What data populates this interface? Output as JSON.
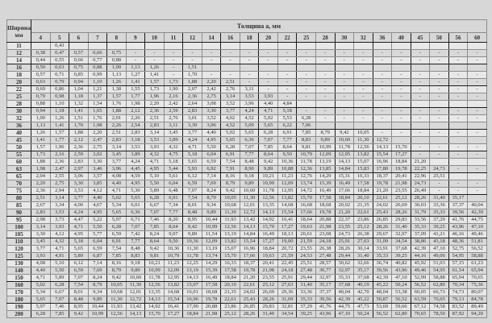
{
  "header": {
    "width_label": "Ширина b,",
    "width_unit": "мм",
    "thickness_label": "Толщина a, мм"
  },
  "columns": [
    "4",
    "5",
    "6",
    "7",
    "8",
    "9",
    "10",
    "11",
    "12",
    "14",
    "16",
    "18",
    "20",
    "22",
    "25",
    "28",
    "30",
    "32",
    "36",
    "40",
    "45",
    "50",
    "56",
    "60"
  ],
  "rows": [
    {
      "w": "11",
      "v": [
        "",
        "0,43",
        "",
        "",
        "",
        "",
        "",
        "",
        "",
        "",
        "",
        "",
        "",
        "",
        "",
        "",
        "",
        "",
        "",
        "",
        "",
        "",
        "",
        ""
      ]
    },
    {
      "w": "12",
      "v": [
        "0,38",
        "0,47",
        "0,57",
        "0,66",
        "0,75",
        "-",
        "-",
        "-",
        "-",
        "-",
        "-",
        "-",
        "-",
        "-",
        "-",
        "-",
        "-",
        "-",
        "-",
        "-",
        "-",
        "-",
        "-",
        "-"
      ]
    },
    {
      "w": "14",
      "v": [
        "0,44",
        "0,55",
        "0,66",
        "0,77",
        "0,88",
        "-",
        "-",
        "-",
        "-",
        "-",
        "-",
        "-",
        "-",
        "-",
        "-",
        "-",
        "-",
        "-",
        "-",
        "-",
        "-",
        "-",
        "-",
        "-"
      ]
    },
    {
      "w": "16",
      "v": [
        "0,50",
        "0,63",
        "0,75",
        "0,88",
        "1,00",
        "1,13",
        "1,26",
        "-",
        "1,51",
        "",
        "",
        "",
        "",
        "",
        "",
        "",
        "",
        "",
        "",
        "",
        "",
        "",
        "",
        ""
      ]
    },
    {
      "w": "18",
      "v": [
        "0,57",
        "0,71",
        "0,85",
        "0,99",
        "1,13",
        "1,27",
        "1,41",
        "-",
        "1,70",
        "-",
        "-",
        "-",
        "-",
        "-",
        "-",
        "-",
        "-",
        "-",
        "-",
        "-",
        "-",
        "-",
        "-",
        "-"
      ]
    },
    {
      "w": "20",
      "v": [
        "0,63",
        "0,79",
        "0,94",
        "1,10",
        "1,26",
        "1,41",
        "1,57",
        "1,73",
        "1,88",
        "2,20",
        "2,51",
        "-",
        "-",
        "-",
        "-",
        "-",
        "-",
        "-",
        "-",
        "-",
        "-",
        "-",
        "-",
        "-"
      ]
    },
    {
      "w": "22",
      "v": [
        "0,69",
        "0,86",
        "1,04",
        "1,21",
        "1,38",
        "1,55",
        "1,73",
        "1,90",
        "2,07",
        "2,42",
        "2,76",
        "3,11",
        "-",
        "-",
        "-",
        "-",
        "-",
        "-",
        "-",
        "-",
        "-",
        "-",
        "-",
        "-"
      ]
    },
    {
      "w": "25",
      "v": [
        "0,79",
        "0,98",
        "1,18",
        "1,37",
        "1,57",
        "1,77",
        "1,96",
        "2,16",
        "2,36",
        "2,75",
        "3,14",
        "3,53",
        "3,93",
        "-",
        "-",
        "-",
        "-",
        "-",
        "-",
        "-",
        "-",
        "-",
        "-",
        "-"
      ]
    },
    {
      "w": "28",
      "v": [
        "0,88",
        "1,10",
        "1,32",
        "1,54",
        "1,76",
        "1,98",
        "2,20",
        "2,42",
        "2,64",
        "3,08",
        "3,52",
        "3,96",
        "4,40",
        "4,84",
        "",
        "",
        "",
        "",
        "",
        "",
        "",
        "",
        "",
        ""
      ]
    },
    {
      "w": "30",
      "v": [
        "0,94",
        "1,18",
        "1,41",
        "1,65",
        "1,88",
        "2,12",
        "2,36",
        "2,59",
        "2,83",
        "3,30",
        "3,77",
        "4,24",
        "4,71",
        "5,18",
        "-",
        "-",
        "-",
        "-",
        "-",
        "-",
        "-",
        "-",
        "-",
        "-"
      ]
    },
    {
      "w": "32",
      "v": [
        "1,00",
        "1,26",
        "1,51",
        "1,76",
        "2,01",
        "2,26",
        "2,51",
        "2,76",
        "3,01",
        "3,52",
        "4,02",
        "4,52",
        "5,02",
        "5,53",
        "6,28",
        "-",
        "-",
        "-",
        "-",
        "-",
        "-",
        "-",
        "-",
        "-"
      ]
    },
    {
      "w": "36",
      "v": [
        "1,13",
        "1,41",
        "1,70",
        "1,98",
        "2,26",
        "2,54",
        "2,83",
        "3,11",
        "3,39",
        "3,96",
        "4,52",
        "5,09",
        "5,65",
        "6,22",
        "7,06",
        "",
        "",
        "",
        "",
        "",
        "",
        "",
        "",
        ""
      ]
    },
    {
      "w": "40",
      "v": [
        "1,26",
        "1,57",
        "1,88",
        "2,20",
        "2,51",
        "2,83",
        "3,14",
        "3,45",
        "3,77",
        "4,40",
        "5,02",
        "5,65",
        "6,28",
        "6,91",
        "7,85",
        "8,79",
        "9,42",
        "10,05",
        "-",
        "-",
        "-",
        "-",
        "-",
        "-"
      ]
    },
    {
      "w": "45",
      "v": [
        "1,41",
        "1,77",
        "2,12",
        "2,47",
        "2,83",
        "3,18",
        "3,53",
        "3,89",
        "4,24",
        "4,95",
        "5,65",
        "6,36",
        "7,07",
        "7,77",
        "8,83",
        "9,89",
        "10,60",
        "11,30",
        "12,72",
        "",
        "",
        "",
        "",
        ""
      ]
    },
    {
      "w": "50",
      "v": [
        "1,57",
        "1,96",
        "2,36",
        "2,75",
        "3,14",
        "3,53",
        "3,93",
        "4,32",
        "4,71",
        "5,50",
        "6,28",
        "7,07",
        "7,85",
        "8,64",
        "9,81",
        "10,99",
        "11,78",
        "12,56",
        "14,13",
        "15,70",
        "-",
        "-",
        "-",
        "-"
      ]
    },
    {
      "w": "55",
      "v": [
        "1,73",
        "2,16",
        "2,59",
        "3,02",
        "3,45",
        "3,89",
        "4,32",
        "4,75",
        "5,18",
        "6,04",
        "6,91",
        "7,77",
        "8,64",
        "9,50",
        "10,79",
        "12,09",
        "12,95",
        "13,82",
        "15,54",
        "17,27",
        "-",
        "-",
        "-",
        "-"
      ]
    },
    {
      "w": "60",
      "v": [
        "1,88",
        "2,36",
        "2,83",
        "3,30",
        "3,77",
        "4,24",
        "4,71",
        "5,18",
        "5,65",
        "6,59",
        "7,54",
        "8,48",
        "9,42",
        "10,36",
        "11,78",
        "13,19",
        "14,13",
        "15,07",
        "16,96",
        "18,84",
        "21,20",
        "",
        "",
        ""
      ]
    },
    {
      "w": "63",
      "v": [
        "1,98",
        "2,47",
        "2,97",
        "3,46",
        "3,96",
        "4,45",
        "4,95",
        "5,44",
        "5,93",
        "6,92",
        "7,91",
        "8,90",
        "9,89",
        "10,88",
        "12,36",
        "13,85",
        "14,84",
        "15,83",
        "17,80",
        "19,78",
        "22,25",
        "24,73",
        "-",
        "-"
      ]
    },
    {
      "w": "65",
      "v": [
        "2,04",
        "2,55",
        "3,06",
        "3,57",
        "4,08",
        "4,59",
        "5,10",
        "5,61",
        "6,12",
        "7,14",
        "8,16",
        "9,18",
        "10,21",
        "11,23",
        "12,76",
        "14,29",
        "15,31",
        "16,33",
        "18,37",
        "20,41",
        "22,96",
        "25,51",
        "",
        ""
      ]
    },
    {
      "w": "70",
      "v": [
        "2,20",
        "2,75",
        "3,30",
        "3,85",
        "4,40",
        "4,95",
        "5,50",
        "6,04",
        "6,59",
        "7,69",
        "8,79",
        "9,89",
        "10,99",
        "12,09",
        "13,74",
        "15,39",
        "16,49",
        "17,58",
        "19,78",
        "21,98",
        "24,73",
        "-",
        "-",
        "-"
      ]
    },
    {
      "w": "75",
      "v": [
        "2,36",
        "2,94",
        "3,53",
        "4,12",
        "4,71",
        "5,30",
        "5,89",
        "6,48",
        "7,07",
        "8,24",
        "9,42",
        "10,60",
        "11,78",
        "12,95",
        "14,72",
        "16,49",
        "17,66",
        "18,84",
        "21,20",
        "23,55",
        "26,49",
        "-",
        "-",
        "-"
      ]
    },
    {
      "w": "80",
      "v": [
        "2,51",
        "3,14",
        "3,77",
        "4,40",
        "5,02",
        "5,65",
        "6,28",
        "6,91",
        "7,54",
        "8,79",
        "10,05",
        "11,30",
        "12,56",
        "13,82",
        "15,70",
        "17,58",
        "18,84",
        "20,10",
        "22,61",
        "25,12",
        "28,26",
        "31,40",
        "35,17",
        ""
      ]
    },
    {
      "w": "85",
      "v": [
        "2,67",
        "3,34",
        "4,00",
        "4,67",
        "5,34",
        "6,01",
        "6,67",
        "7,34",
        "8,01",
        "9,34",
        "10,68",
        "12,01",
        "13,35",
        "14,68",
        "16,68",
        "18,68",
        "20,02",
        "21,35",
        "24,02",
        "26,69",
        "30,03",
        "33,36",
        "37,37",
        "40,04"
      ]
    },
    {
      "w": "90",
      "v": [
        "2,83",
        "3,53",
        "4,24",
        "4,95",
        "5,65",
        "6,36",
        "7,07",
        "7,77",
        "8,48",
        "9,89",
        "11,30",
        "12,72",
        "14,13",
        "15,54",
        "17,66",
        "19,78",
        "21,20",
        "22,61",
        "25,43",
        "28,26",
        "31,79",
        "35,33",
        "39,56",
        "42,39"
      ]
    },
    {
      "w": "95",
      "v": [
        "2,98",
        "3,73",
        "4,47",
        "5,22",
        "5,97",
        "6,71",
        "7,46",
        "8,20",
        "8,95",
        "10,44",
        "11,93",
        "13,42",
        "14,92",
        "16,41",
        "18,64",
        "20,88",
        "22,37",
        "23,86",
        "26,85",
        "29,83",
        "33,56",
        "37,29",
        "41,76",
        "44,75"
      ]
    },
    {
      "w": "100",
      "v": [
        "3,14",
        "3,93",
        "4,71",
        "5,50",
        "6,28",
        "7,07",
        "7,85",
        "8,64",
        "9,42",
        "10,99",
        "12,56",
        "14,13",
        "15,70",
        "17,27",
        "19,63",
        "21,98",
        "23,55",
        "25,12",
        "28,26",
        "31,40",
        "35,33",
        "39,25",
        "43,96",
        "47,10"
      ]
    },
    {
      "w": "105",
      "v": [
        "3,30",
        "4,12",
        "4,95",
        "5,77",
        "6,59",
        "7,42",
        "8,24",
        "9,07",
        "9,89",
        "11,54",
        "13,19",
        "14,84",
        "16,49",
        "18,13",
        "20,61",
        "23,08",
        "24,73",
        "26,38",
        "29,67",
        "32,97",
        "37,09",
        "41,21",
        "46,16",
        "49,46"
      ]
    },
    {
      "w": "110",
      "v": [
        "3,45",
        "4,32",
        "5,18",
        "6,04",
        "6,91",
        "7,77",
        "8,64",
        "9,50",
        "10,36",
        "12,09",
        "13,82",
        "15,54",
        "17,27",
        "19,00",
        "21,59",
        "24,18",
        "25,91",
        "27,63",
        "31,09",
        "34,54",
        "38,86",
        "43,18",
        "48,36",
        "51,81"
      ]
    },
    {
      "w": "120",
      "v": [
        "3,77",
        "4,71",
        "5,65",
        "6,59",
        "7,54",
        "8,48",
        "9,42",
        "10,36",
        "11,30",
        "13,19",
        "15,07",
        "16,96",
        "18,84",
        "20,72",
        "23,55",
        "26,38",
        "28,26",
        "30,14",
        "33,91",
        "37,68",
        "42,39",
        "47,10",
        "52,75",
        "56,52"
      ]
    },
    {
      "w": "125",
      "v": [
        "3,93",
        "4,91",
        "5,89",
        "6,87",
        "7,85",
        "8,83",
        "9,81",
        "10,79",
        "11,78",
        "13,74",
        "15,70",
        "17,66",
        "19,63",
        "21,59",
        "24,53",
        "27,48",
        "29,44",
        "31,40",
        "35,33",
        "39,25",
        "44,16",
        "49,06",
        "54,95",
        "58,88"
      ]
    },
    {
      "w": "130",
      "v": [
        "4,08",
        "5,10",
        "6,12",
        "7,14",
        "8,16",
        "9,18",
        "10,21",
        "11,23",
        "12,25",
        "14,29",
        "16,33",
        "18,37",
        "20,41",
        "22,45",
        "25,51",
        "28,57",
        "30,62",
        "32,66",
        "36,74",
        "40,82",
        "45,92",
        "51,03",
        "57,15",
        "61,23"
      ]
    },
    {
      "w": "140",
      "v": [
        "4,40",
        "5,50",
        "6,59",
        "7,69",
        "8,79",
        "9,89",
        "10,99",
        "12,09",
        "13,19",
        "15,39",
        "17,58",
        "19,78",
        "21,98",
        "24,18",
        "27,48",
        "30,77",
        "32,97",
        "35,17",
        "39,56",
        "43,96",
        "49,46",
        "54,95",
        "61,54",
        "65,94"
      ]
    },
    {
      "w": "150",
      "v": [
        "4,71",
        "5,89",
        "7,07",
        "8,24",
        "9,42",
        "10,60",
        "11,78",
        "12,95",
        "14,13",
        "16,49",
        "18,84",
        "21,20",
        "23,55",
        "25,91",
        "29,44",
        "32,97",
        "35,33",
        "37,68",
        "42,39",
        "47,10",
        "52,99",
        "58,88",
        "65,94",
        "70,65"
      ]
    },
    {
      "w": "160",
      "v": [
        "5,02",
        "6,28",
        "7,54",
        "8,79",
        "10,05",
        "11,30",
        "12,56",
        "13,82",
        "15,07",
        "17,58",
        "20,10",
        "22,61",
        "25,12",
        "27,63",
        "31,40",
        "35,17",
        "37,68",
        "40,19",
        "45,22",
        "50,24",
        "56,52",
        "62,80",
        "70,34",
        "75,36"
      ]
    },
    {
      "w": "170",
      "v": [
        "5,34",
        "6,67",
        "8,01",
        "9,34",
        "10,68",
        "12,01",
        "13,35",
        "14,68",
        "16,01",
        "18,68",
        "21,35",
        "24,02",
        "26,69",
        "29,36",
        "33,36",
        "37,37",
        "40,04",
        "42,70",
        "48,04",
        "53,38",
        "60,05",
        "66,73",
        "74,73",
        "80,07"
      ]
    },
    {
      "w": "180",
      "v": [
        "5,65",
        "7,07",
        "8,48",
        "9,89",
        "11,30",
        "12,72",
        "14,13",
        "15,54",
        "16,96",
        "19,78",
        "22,61",
        "25,43",
        "28,26",
        "31,09",
        "35,33",
        "39,56",
        "42,39",
        "45,22",
        "50,87",
        "56,52",
        "63,59",
        "70,65",
        "79,13",
        "84,78"
      ]
    },
    {
      "w": "190",
      "v": [
        "5,97",
        "7,46",
        "8,95",
        "10,44",
        "11,93",
        "13,42",
        "14,92",
        "16,41",
        "17,90",
        "20,88",
        "23,86",
        "26,85",
        "29,83",
        "32,81",
        "37,29",
        "41,76",
        "44,75",
        "47,73",
        "53,69",
        "59,66",
        "67,12",
        "74,58",
        "83,52",
        "89,49"
      ]
    },
    {
      "w": "200",
      "v": [
        "6,28",
        "7,85",
        "9,42",
        "10,99",
        "12,56",
        "14,13",
        "15,70",
        "17,27",
        "18,84",
        "21,98",
        "25,12",
        "28,26",
        "31,40",
        "34,54",
        "39,25",
        "43,96",
        "47,10",
        "50,24",
        "56,52",
        "62,80",
        "70,65",
        "78,50",
        "87,92",
        "94,20"
      ]
    }
  ]
}
